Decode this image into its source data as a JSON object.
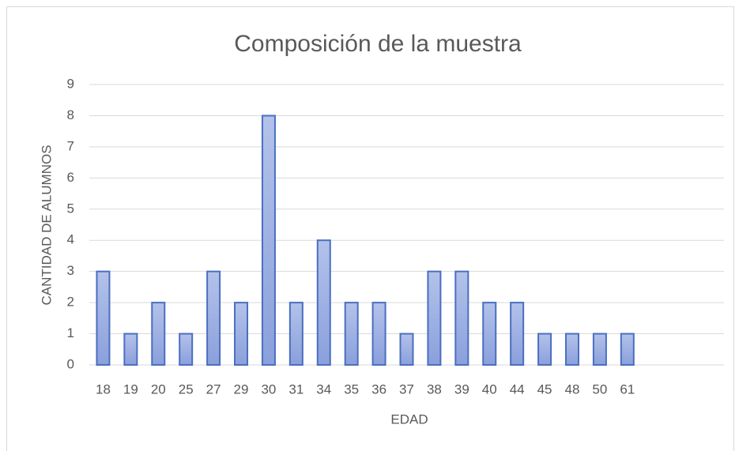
{
  "chart_data": {
    "type": "bar",
    "title": "Composición de la muestra",
    "x_label": "EDAD",
    "y_label": "CANTIDAD DE ALUMNOS",
    "categories": [
      "18",
      "19",
      "20",
      "25",
      "27",
      "29",
      "30",
      "31",
      "34",
      "35",
      "36",
      "37",
      "38",
      "39",
      "40",
      "44",
      "45",
      "48",
      "50",
      "61",
      null,
      null,
      null
    ],
    "values": [
      3,
      1,
      2,
      1,
      3,
      2,
      8,
      2,
      4,
      2,
      2,
      1,
      3,
      3,
      2,
      2,
      1,
      1,
      1,
      1,
      null,
      null,
      null
    ],
    "color": "#4a6fc0",
    "ylim": [
      0,
      9
    ],
    "yticks": [
      0,
      1,
      2,
      3,
      4,
      5,
      6,
      7,
      8,
      9
    ],
    "grid": true
  }
}
